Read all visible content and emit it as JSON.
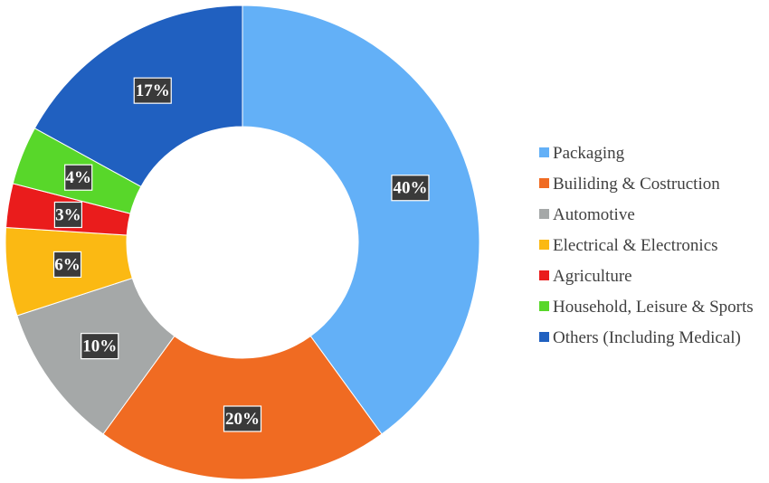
{
  "chart_data": {
    "type": "pie",
    "title": "",
    "categories": [
      "Packaging",
      "Builiding & Costruction",
      "Automotive",
      "Electrical & Electronics",
      "Agriculture",
      "Household, Leisure & Sports",
      "Others (Including Medical)"
    ],
    "values": [
      40,
      20,
      10,
      6,
      3,
      4,
      17
    ],
    "labels": [
      "40%",
      "20%",
      "10%",
      "6%",
      "3%",
      "4%",
      "17%"
    ],
    "colors": [
      "#63b0f7",
      "#f06b22",
      "#a5a8a8",
      "#fbb913",
      "#ea1c1c",
      "#58d72a",
      "#2060c0"
    ],
    "donut": true,
    "legend_position": "right"
  }
}
